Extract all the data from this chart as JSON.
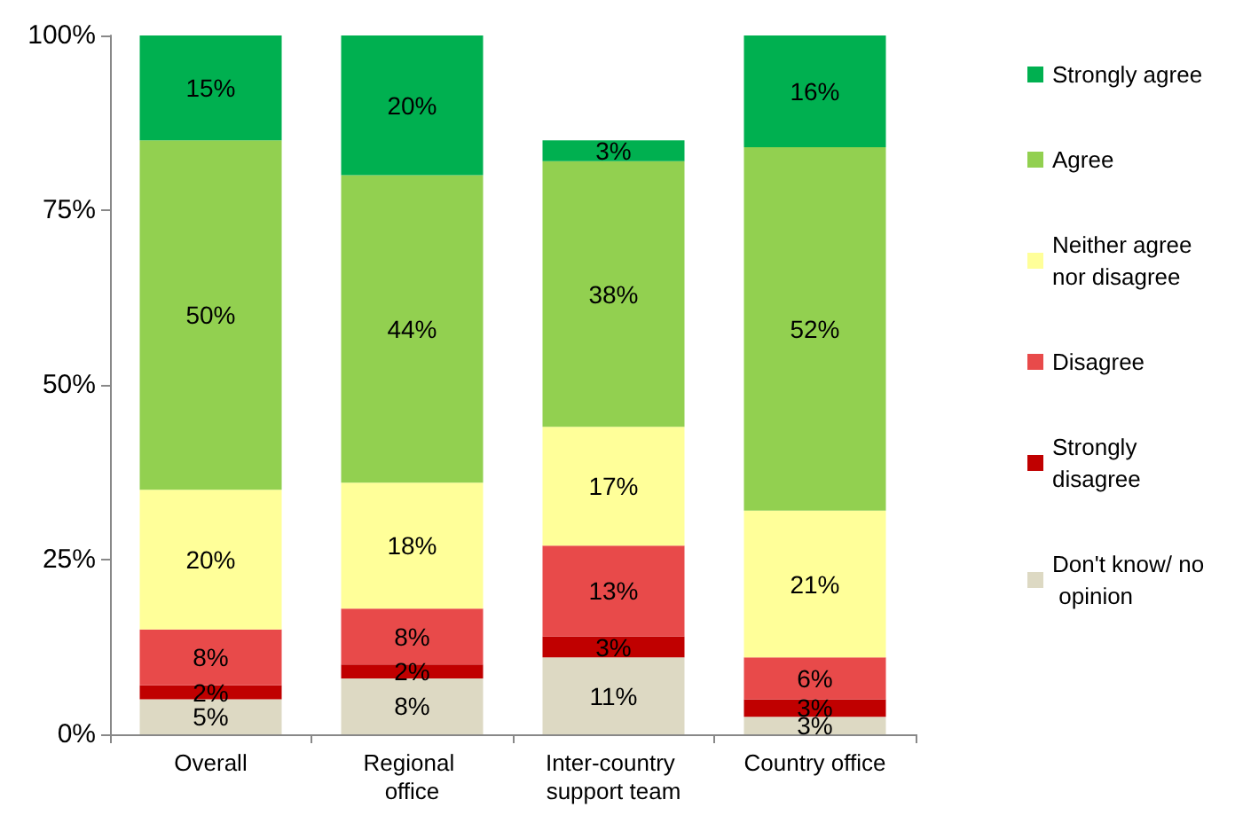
{
  "chart_data": {
    "type": "bar",
    "stacked": true,
    "categories": [
      "Overall",
      "Regional office",
      "Inter-country support team",
      "Country office"
    ],
    "ylim": [
      0,
      100
    ],
    "yticks": [
      {
        "value": 0,
        "label": "0%"
      },
      {
        "value": 25,
        "label": "25%"
      },
      {
        "value": 50,
        "label": "50%"
      },
      {
        "value": 75,
        "label": "75%"
      },
      {
        "value": 100,
        "label": "100%"
      }
    ],
    "grid": false,
    "legend": "right",
    "series": [
      {
        "name": "Don't know/ no opinion",
        "color": "#ddd9c3",
        "values": [
          5,
          8,
          11,
          2.5
        ],
        "value_labels": [
          "5%",
          "8%",
          "11%",
          "3%"
        ]
      },
      {
        "name": "Strongly disagree",
        "color": "#c00000",
        "values": [
          2,
          2,
          3,
          2.5
        ],
        "value_labels": [
          "2%",
          "2%",
          "3%",
          "3%"
        ]
      },
      {
        "name": "Disagree",
        "color": "#e84a4a",
        "values": [
          8,
          8,
          13,
          6
        ],
        "value_labels": [
          "8%",
          "8%",
          "13%",
          "6%"
        ]
      },
      {
        "name": "Neither agree nor disagree",
        "color": "#ffff99",
        "values": [
          20,
          18,
          17,
          21
        ],
        "value_labels": [
          "20%",
          "18%",
          "17%",
          "21%"
        ]
      },
      {
        "name": "Agree",
        "color": "#92d050",
        "values": [
          50,
          44,
          38,
          52
        ],
        "value_labels": [
          "50%",
          "44%",
          "38%",
          "52%"
        ]
      },
      {
        "name": "Strongly agree",
        "color": "#00b050",
        "values": [
          15,
          20,
          3,
          16
        ],
        "value_labels": [
          "15%",
          "20%",
          "3%",
          "16%"
        ]
      }
    ]
  }
}
